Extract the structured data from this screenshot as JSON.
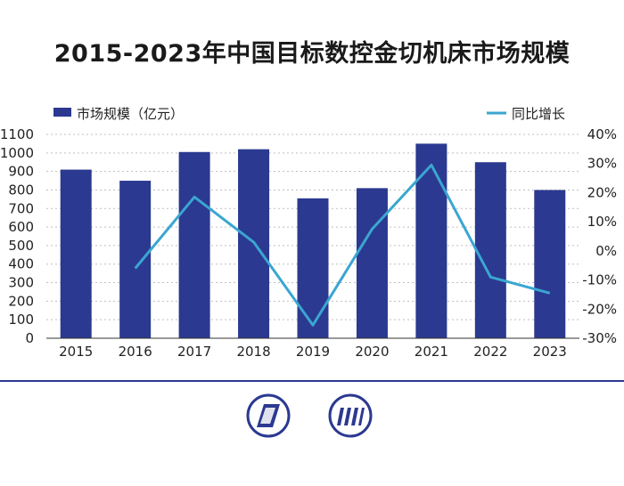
{
  "chart_data": {
    "type": "bar",
    "title": "2015-2023年中国目标数控金切机床市场规模",
    "categories": [
      "2015",
      "2016",
      "2017",
      "2018",
      "2019",
      "2020",
      "2021",
      "2022",
      "2023"
    ],
    "series": [
      {
        "name": "市场规模（亿元）",
        "type": "bar",
        "axis": "left",
        "values": [
          910,
          850,
          1005,
          1020,
          755,
          810,
          1050,
          950,
          800
        ]
      },
      {
        "name": "同比增长",
        "type": "line",
        "axis": "right",
        "values": [
          null,
          -6,
          18.5,
          3,
          -25.5,
          7.5,
          29.5,
          -9,
          -14.5
        ]
      }
    ],
    "left_axis": {
      "ylim": [
        0,
        1100
      ],
      "ticks": [
        "0",
        "100",
        "200",
        "300",
        "400",
        "500",
        "600",
        "700",
        "800",
        "900",
        "1000",
        "1100"
      ]
    },
    "right_axis": {
      "ylim": [
        -30,
        40
      ],
      "ticks": [
        "-30%",
        "-20%",
        "-10%",
        "0%",
        "10%",
        "20%",
        "30%",
        "40%"
      ]
    },
    "grid": true,
    "legend": "top"
  },
  "colors": {
    "bar": "#2b3990",
    "line": "#3aa6d1",
    "grid": "#bfbfbf",
    "axis": "#333333"
  },
  "logos": [
    "brand-logo-icon",
    "brand-logo-icon-2"
  ]
}
